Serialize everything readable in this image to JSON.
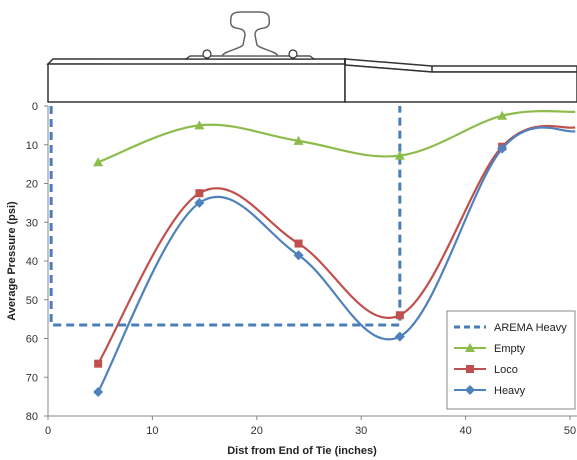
{
  "colors": {
    "arema": "#4a7ebb",
    "empty": "#8cbc4b",
    "loco": "#c0504d",
    "heavy": "#4f81bd",
    "axis": "#888888",
    "tie_outline": "#333333"
  },
  "chart_data": {
    "type": "line",
    "xlabel": "Dist from End of Tie (inches)",
    "ylabel": "Average Pressure (psi)",
    "xlim": [
      0,
      50
    ],
    "ylim": [
      0,
      80
    ],
    "y_inverted": true,
    "grid": false,
    "legend_position": "bottom-right",
    "x_ticks": [
      "0",
      "10",
      "20",
      "30",
      "40",
      "50"
    ],
    "y_ticks": [
      "0",
      "10",
      "20",
      "30",
      "40",
      "50",
      "60",
      "70",
      "80"
    ],
    "series": [
      {
        "name": "AREMA Heavy",
        "style": "dashed",
        "marker": "none",
        "color_key": "arema",
        "points": [
          [
            0.3,
            0
          ],
          [
            0.3,
            56.5
          ],
          [
            33.7,
            56.5
          ],
          [
            33.7,
            0
          ]
        ]
      },
      {
        "name": "Empty",
        "style": "solid",
        "marker": "triangle",
        "color_key": "empty",
        "points": [
          [
            4.8,
            14.5
          ],
          [
            14.5,
            5
          ],
          [
            24,
            9
          ],
          [
            33.7,
            12.8
          ],
          [
            43.5,
            2.5
          ],
          [
            50.5,
            1.5
          ]
        ],
        "marked_count": 5
      },
      {
        "name": "Loco",
        "style": "solid",
        "marker": "square",
        "color_key": "loco",
        "points": [
          [
            4.8,
            66.5
          ],
          [
            14.5,
            22.5
          ],
          [
            24,
            35.5
          ],
          [
            33.7,
            54
          ],
          [
            43.5,
            10.5
          ],
          [
            50.5,
            5.5
          ]
        ],
        "marked_count": 5
      },
      {
        "name": "Heavy",
        "style": "solid",
        "marker": "diamond",
        "color_key": "heavy",
        "points": [
          [
            4.8,
            73.8
          ],
          [
            14.5,
            25
          ],
          [
            24,
            38.5
          ],
          [
            33.7,
            59.5
          ],
          [
            43.5,
            11
          ],
          [
            50.5,
            6.5
          ]
        ],
        "marked_count": 5
      }
    ]
  }
}
